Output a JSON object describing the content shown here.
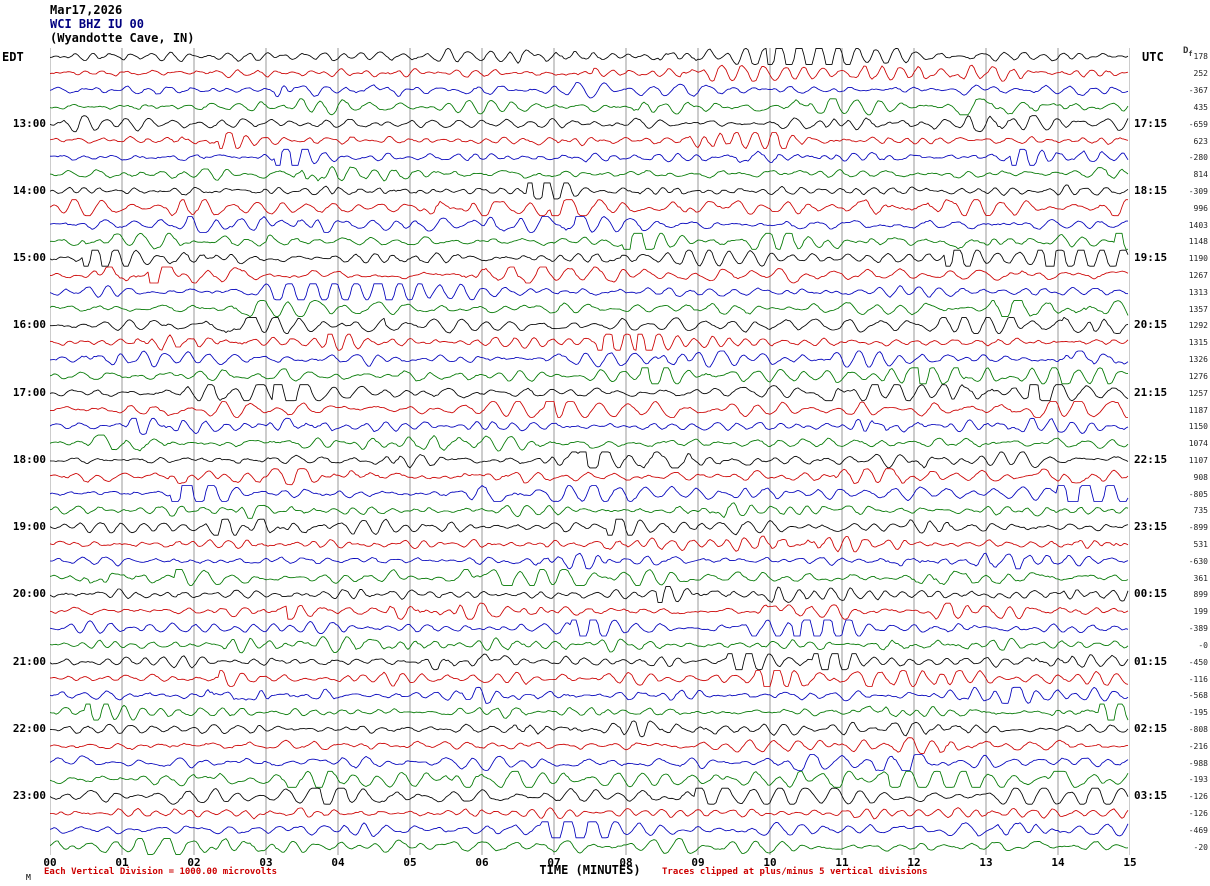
{
  "title": {
    "line1": "Mar17,2026",
    "line2": "WCI BHZ IU 00",
    "line3": "(Wyandotte Cave, IN)"
  },
  "axes": {
    "left_label": "EDT",
    "right_label": "UTC",
    "df_main": "D",
    "df_sub": "f",
    "x_label": "TIME (MINUTES)",
    "x_ticks": [
      "00",
      "01",
      "02",
      "03",
      "04",
      "05",
      "06",
      "07",
      "08",
      "09",
      "10",
      "11",
      "12",
      "13",
      "14",
      "15"
    ]
  },
  "footer": {
    "left": "Each Vertical Division = 1000.00 microvolts",
    "right": "Traces clipped at plus/minus 5 vertical divisions",
    "corner": "M"
  },
  "colors": {
    "grid": "#999999",
    "footer_text": "#cc0000",
    "station_title": "#000080"
  },
  "chart_data": {
    "type": "line",
    "subtype": "helicorder-seismogram",
    "title": "Mar17,2026 WCI BHZ IU 00 (Wyandotte Cave, IN)",
    "xlabel": "TIME (MINUTES)",
    "x_axis": {
      "min": 0,
      "max": 15,
      "tick_interval": 1
    },
    "rows": 48,
    "minutes_per_row": 15,
    "grid": "vertical lines at each minute",
    "trace_colors": [
      "#000000",
      "#cc0000",
      "#0000bb",
      "#007700"
    ],
    "color_cycle": [
      "black",
      "red",
      "blue",
      "green"
    ],
    "left_times": [
      "13:00",
      "14:00",
      "15:00",
      "16:00",
      "17:00",
      "18:00",
      "19:00",
      "20:00",
      "21:00",
      "22:00",
      "23:00"
    ],
    "left_times_start_row": 4,
    "left_times_row_step": 4,
    "right_times": [
      "17:15",
      "18:15",
      "19:15",
      "20:15",
      "21:15",
      "22:15",
      "23:15",
      "00:15",
      "01:15",
      "02:15",
      "03:15"
    ],
    "right_values": [
      "178",
      "252",
      "-367",
      "435",
      "-659",
      "623",
      "-280",
      "814",
      "-309",
      "996",
      "1403",
      "1148",
      "1190",
      "1267",
      "1313",
      "1357",
      "1292",
      "1315",
      "1326",
      "1276",
      "1257",
      "1187",
      "1150",
      "1074",
      "1107",
      "908",
      "-805",
      "735",
      "-899",
      "531",
      "-630",
      "361",
      "899",
      "199",
      "-389",
      "-0",
      "-450",
      "-116",
      "-568",
      "-195",
      "-808",
      "-216",
      "-988",
      "-193",
      "-126",
      "-126",
      "-469",
      "-20"
    ],
    "clip_divisions": 5,
    "division_microvolts": 1000.0,
    "waveform": "continuous band-limited seismic background noise per 15-minute row; individual samples not resolvable at this scale, rendered procedurally with per-row seeds"
  }
}
